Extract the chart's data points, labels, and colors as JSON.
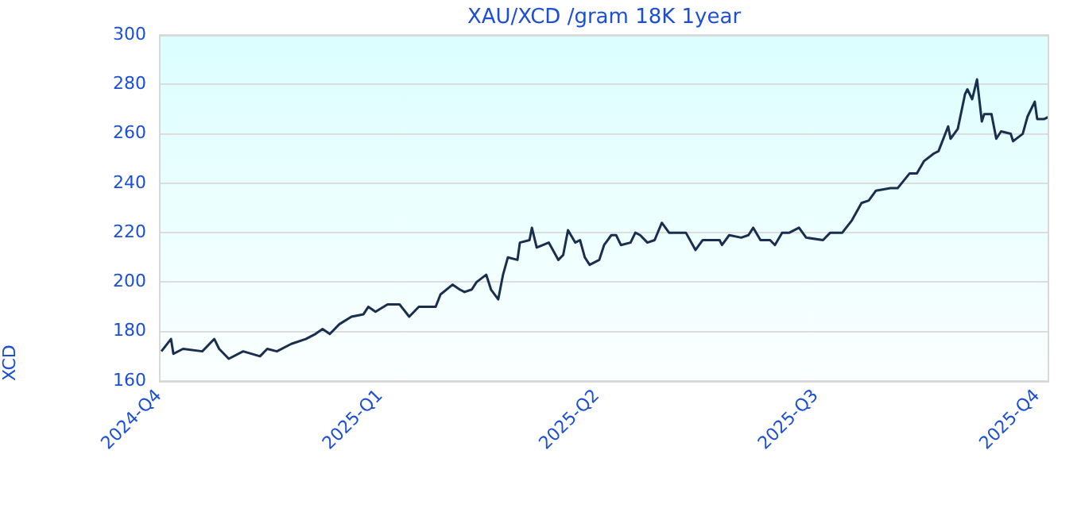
{
  "chart_data": {
    "type": "line",
    "title": "XAU/XCD /gram 18K 1year",
    "ylabel": "XCD",
    "xlim": [
      "2024-10-01",
      "2025-10-06"
    ],
    "xticks": [
      {
        "value": "2024-10-01",
        "label": "2024-Q4"
      },
      {
        "value": "2025-01-01",
        "label": "2025-Q1"
      },
      {
        "value": "2025-04-01",
        "label": "2025-Q2"
      },
      {
        "value": "2025-07-01",
        "label": "2025-Q3"
      },
      {
        "value": "2025-10-01",
        "label": "2025-Q4"
      }
    ],
    "ylim": [
      160,
      300
    ],
    "yticks": [
      160,
      180,
      200,
      220,
      240,
      260,
      280,
      300
    ],
    "grid": "y",
    "legend": false,
    "marker": "none",
    "line_style": "solid",
    "series": [
      {
        "color": "#1a2e4f",
        "x": [
          "2024-10-02",
          "2024-10-06",
          "2024-10-07",
          "2024-10-11",
          "2024-10-19",
          "2024-10-24",
          "2024-10-26",
          "2024-10-30",
          "2024-11-05",
          "2024-11-12",
          "2024-11-15",
          "2024-11-19",
          "2024-11-25",
          "2024-12-01",
          "2024-12-05",
          "2024-12-08",
          "2024-12-11",
          "2024-12-15",
          "2024-12-20",
          "2024-12-25",
          "2024-12-27",
          "2024-12-30",
          "2025-01-04",
          "2025-01-09",
          "2025-01-13",
          "2025-01-17",
          "2025-01-24",
          "2025-01-26",
          "2025-01-31",
          "2025-02-03",
          "2025-02-05",
          "2025-02-08",
          "2025-02-10",
          "2025-02-14",
          "2025-02-16",
          "2025-02-19",
          "2025-02-21",
          "2025-02-23",
          "2025-02-27",
          "2025-02-28",
          "2025-03-04",
          "2025-03-05",
          "2025-03-07",
          "2025-03-12",
          "2025-03-16",
          "2025-03-18",
          "2025-03-20",
          "2025-03-23",
          "2025-03-25",
          "2025-03-27",
          "2025-03-29",
          "2025-04-02",
          "2025-04-04",
          "2025-04-07",
          "2025-04-09",
          "2025-04-11",
          "2025-04-15",
          "2025-04-17",
          "2025-04-19",
          "2025-04-22",
          "2025-04-25",
          "2025-04-28",
          "2025-05-01",
          "2025-05-08",
          "2025-05-12",
          "2025-05-15",
          "2025-05-22",
          "2025-05-23",
          "2025-05-26",
          "2025-05-31",
          "2025-06-03",
          "2025-06-05",
          "2025-06-08",
          "2025-06-12",
          "2025-06-14",
          "2025-06-17",
          "2025-06-20",
          "2025-06-24",
          "2025-06-27",
          "2025-07-04",
          "2025-07-07",
          "2025-07-12",
          "2025-07-16",
          "2025-07-20",
          "2025-07-23",
          "2025-07-26",
          "2025-08-01",
          "2025-08-04",
          "2025-08-09",
          "2025-08-12",
          "2025-08-15",
          "2025-08-19",
          "2025-08-21",
          "2025-08-25",
          "2025-08-26",
          "2025-08-29",
          "2025-09-01",
          "2025-09-02",
          "2025-09-04",
          "2025-09-06",
          "2025-09-08",
          "2025-09-09",
          "2025-09-12",
          "2025-09-14",
          "2025-09-16",
          "2025-09-20",
          "2025-09-21",
          "2025-09-25",
          "2025-09-27",
          "2025-09-30",
          "2025-10-01",
          "2025-10-04",
          "2025-10-06"
        ],
        "values": [
          172,
          177,
          171,
          173,
          172,
          177,
          173,
          169,
          172,
          170,
          173,
          172,
          175,
          177,
          179,
          181,
          179,
          183,
          186,
          187,
          190,
          188,
          191,
          191,
          186,
          190,
          190,
          195,
          199,
          197,
          196,
          197,
          200,
          203,
          197,
          193,
          203,
          210,
          209,
          216,
          217,
          222,
          214,
          216,
          209,
          211,
          221,
          216,
          217,
          210,
          207,
          209,
          215,
          219,
          219,
          215,
          216,
          220,
          219,
          216,
          217,
          224,
          220,
          220,
          213,
          217,
          217,
          215,
          219,
          218,
          219,
          222,
          217,
          217,
          215,
          220,
          220,
          222,
          218,
          217,
          220,
          220,
          225,
          232,
          233,
          237,
          238,
          238,
          244,
          244,
          249,
          252,
          253,
          263,
          258,
          262,
          276,
          278,
          274,
          282,
          265,
          268,
          268,
          258,
          261,
          260,
          257,
          260,
          267,
          273,
          266,
          266,
          267
        ]
      }
    ]
  }
}
